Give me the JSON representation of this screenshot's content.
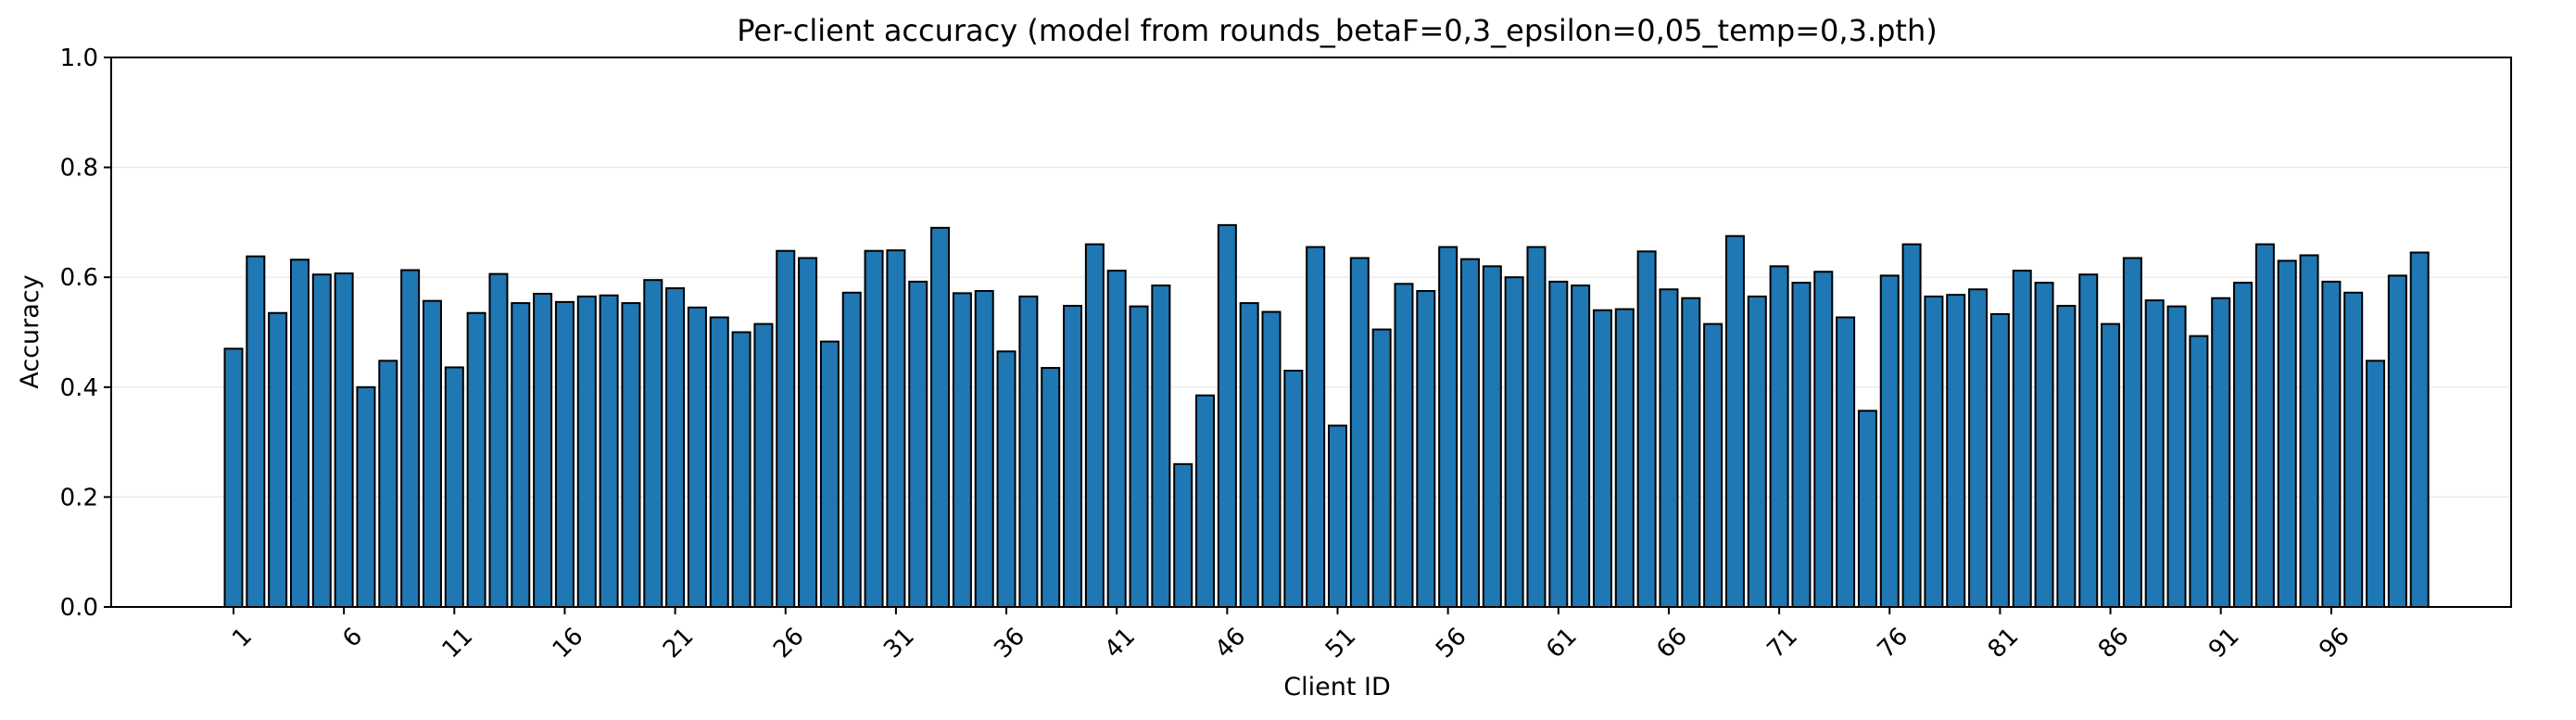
{
  "chart_data": {
    "type": "bar",
    "title": "Per-client accuracy (model from rounds_betaF=0,3_epsilon=0,05_temp=0,3.pth)",
    "xlabel": "Client ID",
    "ylabel": "Accuracy",
    "ylim": [
      0,
      1.0
    ],
    "yticks": [
      "0.0",
      "0.2",
      "0.4",
      "0.6",
      "0.8",
      "1.0"
    ],
    "xtick_labels": [
      "1",
      "6",
      "11",
      "16",
      "21",
      "26",
      "31",
      "36",
      "41",
      "46",
      "51",
      "56",
      "61",
      "66",
      "71",
      "76",
      "81",
      "86",
      "91",
      "96"
    ],
    "grid": "horizontal",
    "bar_color": "#1f77b4",
    "edge_color": "#000000",
    "categories": [
      1,
      2,
      3,
      4,
      5,
      6,
      7,
      8,
      9,
      10,
      11,
      12,
      13,
      14,
      15,
      16,
      17,
      18,
      19,
      20,
      21,
      22,
      23,
      24,
      25,
      26,
      27,
      28,
      29,
      30,
      31,
      32,
      33,
      34,
      35,
      36,
      37,
      38,
      39,
      40,
      41,
      42,
      43,
      44,
      45,
      46,
      47,
      48,
      49,
      50,
      51,
      52,
      53,
      54,
      55,
      56,
      57,
      58,
      59,
      60,
      61,
      62,
      63,
      64,
      65,
      66,
      67,
      68,
      69,
      70,
      71,
      72,
      73,
      74,
      75,
      76,
      77,
      78,
      79,
      80,
      81,
      82,
      83,
      84,
      85,
      86,
      87,
      88,
      89,
      90,
      91,
      92,
      93,
      94,
      95,
      96,
      97,
      98,
      99,
      100
    ],
    "values": [
      0.47,
      0.638,
      0.535,
      0.632,
      0.605,
      0.607,
      0.4,
      0.448,
      0.613,
      0.557,
      0.436,
      0.535,
      0.606,
      0.553,
      0.57,
      0.555,
      0.565,
      0.567,
      0.553,
      0.595,
      0.58,
      0.545,
      0.527,
      0.5,
      0.515,
      0.648,
      0.635,
      0.483,
      0.572,
      0.648,
      0.649,
      0.592,
      0.69,
      0.571,
      0.575,
      0.465,
      0.565,
      0.435,
      0.548,
      0.66,
      0.612,
      0.547,
      0.585,
      0.26,
      0.385,
      0.695,
      0.553,
      0.537,
      0.43,
      0.655,
      0.33,
      0.635,
      0.505,
      0.588,
      0.575,
      0.655,
      0.633,
      0.62,
      0.6,
      0.655,
      0.592,
      0.585,
      0.54,
      0.542,
      0.647,
      0.578,
      0.562,
      0.515,
      0.675,
      0.565,
      0.62,
      0.59,
      0.61,
      0.527,
      0.357,
      0.603,
      0.66,
      0.565,
      0.568,
      0.578,
      0.533,
      0.612,
      0.59,
      0.548,
      0.605,
      0.515,
      0.635,
      0.558,
      0.547,
      0.493,
      0.562,
      0.59,
      0.66,
      0.63,
      0.64,
      0.592,
      0.572,
      0.448,
      0.603,
      0.645
    ]
  }
}
